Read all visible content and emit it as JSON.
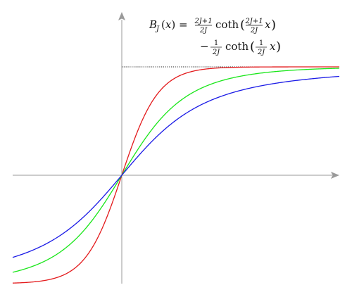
{
  "chart_data": {
    "type": "line",
    "title": "",
    "xlabel": "",
    "ylabel": "",
    "xlim": [
      -3.1,
      5.9
    ],
    "ylim": [
      -1.0,
      1.33
    ],
    "grid": false,
    "legend": "none",
    "annotations": [
      {
        "kind": "formula",
        "lines": [
          "B_J(x) = \\frac{2J+1}{2J} \\coth\\left(\\frac{2J+1}{2J}x\\right)",
          "- \\frac{1}{2J} \\coth\\left(\\frac{1}{2J}x\\right)"
        ]
      }
    ],
    "asymptote": {
      "y": 1.0,
      "style": "dotted",
      "color": "#222222"
    },
    "series": [
      {
        "color": "#e31a1c",
        "function": "brillouin",
        "J": 0.5
      },
      {
        "color": "#19e619",
        "function": "brillouin",
        "J": 1.5
      },
      {
        "color": "#1a1ae6",
        "function": "brillouin",
        "J": 5
      }
    ]
  }
}
